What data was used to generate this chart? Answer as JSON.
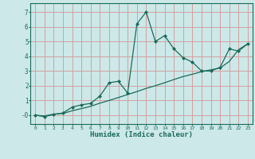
{
  "title": "",
  "xlabel": "Humidex (Indice chaleur)",
  "bg_color": "#cce8e8",
  "grid_color": "#d4a0a0",
  "line_color": "#1a6b5a",
  "xlim": [
    -0.5,
    23.5
  ],
  "ylim": [
    -0.6,
    7.6
  ],
  "xticks": [
    0,
    1,
    2,
    3,
    4,
    5,
    6,
    7,
    8,
    9,
    10,
    11,
    12,
    13,
    14,
    15,
    16,
    17,
    18,
    19,
    20,
    21,
    22,
    23
  ],
  "yticks": [
    0,
    1,
    2,
    3,
    4,
    5,
    6,
    7
  ],
  "ytick_labels": [
    "-0",
    "1",
    "2",
    "3",
    "4",
    "5",
    "6",
    "7"
  ],
  "series1_x": [
    0,
    1,
    2,
    3,
    4,
    5,
    6,
    7,
    8,
    9,
    10,
    11,
    12,
    13,
    14,
    15,
    16,
    17,
    18,
    19,
    20,
    21,
    22,
    23
  ],
  "series1_y": [
    0.0,
    -0.1,
    0.05,
    0.15,
    0.55,
    0.7,
    0.8,
    1.3,
    2.2,
    2.3,
    1.5,
    6.2,
    7.0,
    5.0,
    5.4,
    4.5,
    3.9,
    3.6,
    3.0,
    3.0,
    3.25,
    4.5,
    4.35,
    4.85
  ],
  "series2_x": [
    0,
    1,
    2,
    3,
    4,
    5,
    6,
    7,
    8,
    9,
    10,
    11,
    12,
    13,
    14,
    15,
    16,
    17,
    18,
    19,
    20,
    21,
    22,
    23
  ],
  "series2_y": [
    0.0,
    -0.05,
    0.07,
    0.12,
    0.3,
    0.45,
    0.6,
    0.82,
    1.0,
    1.2,
    1.4,
    1.6,
    1.82,
    2.0,
    2.2,
    2.42,
    2.62,
    2.78,
    2.95,
    3.08,
    3.2,
    3.65,
    4.45,
    4.85
  ]
}
